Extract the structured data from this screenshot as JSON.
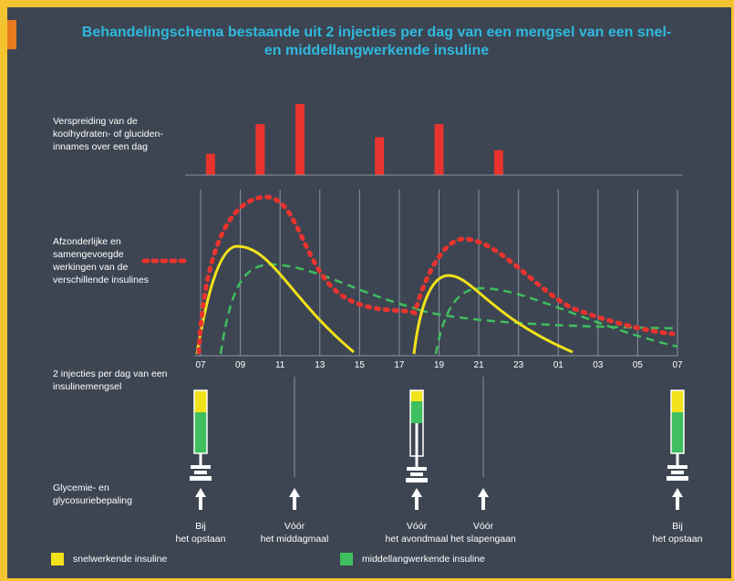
{
  "title": {
    "line1": "Behandelingschema bestaande uit 2 injecties per dag van een mengsel van een snel-",
    "line2": "en middellangwerkende insuline"
  },
  "row_labels": {
    "carb": "Verspreiding van de koolhydraten- of gluciden-innames over een dag",
    "insulin": "Afzonderlijke en samengevoegde werkingen van de verschillende insulines",
    "injections": "2 injecties per dag van een insulinemengsel",
    "glycemia": "Glycemie- en glycosuriebepaling"
  },
  "time_ticks": [
    "07",
    "09",
    "11",
    "13",
    "15",
    "17",
    "19",
    "21",
    "23",
    "01",
    "03",
    "05",
    "07"
  ],
  "meal_labels": [
    {
      "line1": "Bij",
      "line2": "het opstaan"
    },
    {
      "line1": "Vóór",
      "line2": "het middagmaal"
    },
    {
      "line1": "Vóór",
      "line2": "het avondmaal"
    },
    {
      "line1": "Vóór",
      "line2": "het slapengaan"
    },
    {
      "line1": "Bij",
      "line2": "het opstaan"
    }
  ],
  "legend": {
    "fast": {
      "label": "snelwerkende insuline",
      "color": "#f2e21a"
    },
    "medium": {
      "label": "middellangwerkende insuline",
      "color": "#3fbf5f"
    }
  },
  "colors": {
    "carb_bar": "#e8332e",
    "combined": "#e8332e",
    "fast": "#f2e21a",
    "medium": "#3fbf5f",
    "background": "#3d4552",
    "title": "#2fb9de"
  },
  "chart_data": {
    "type": "bar",
    "title": "",
    "xlabel": "",
    "ylabel": "",
    "categories": [
      "07:30",
      "10:00",
      "12:00",
      "16:00",
      "19:00",
      "22:00"
    ],
    "values": [
      1.8,
      4.3,
      6.0,
      3.2,
      4.3,
      2.1
    ]
  }
}
